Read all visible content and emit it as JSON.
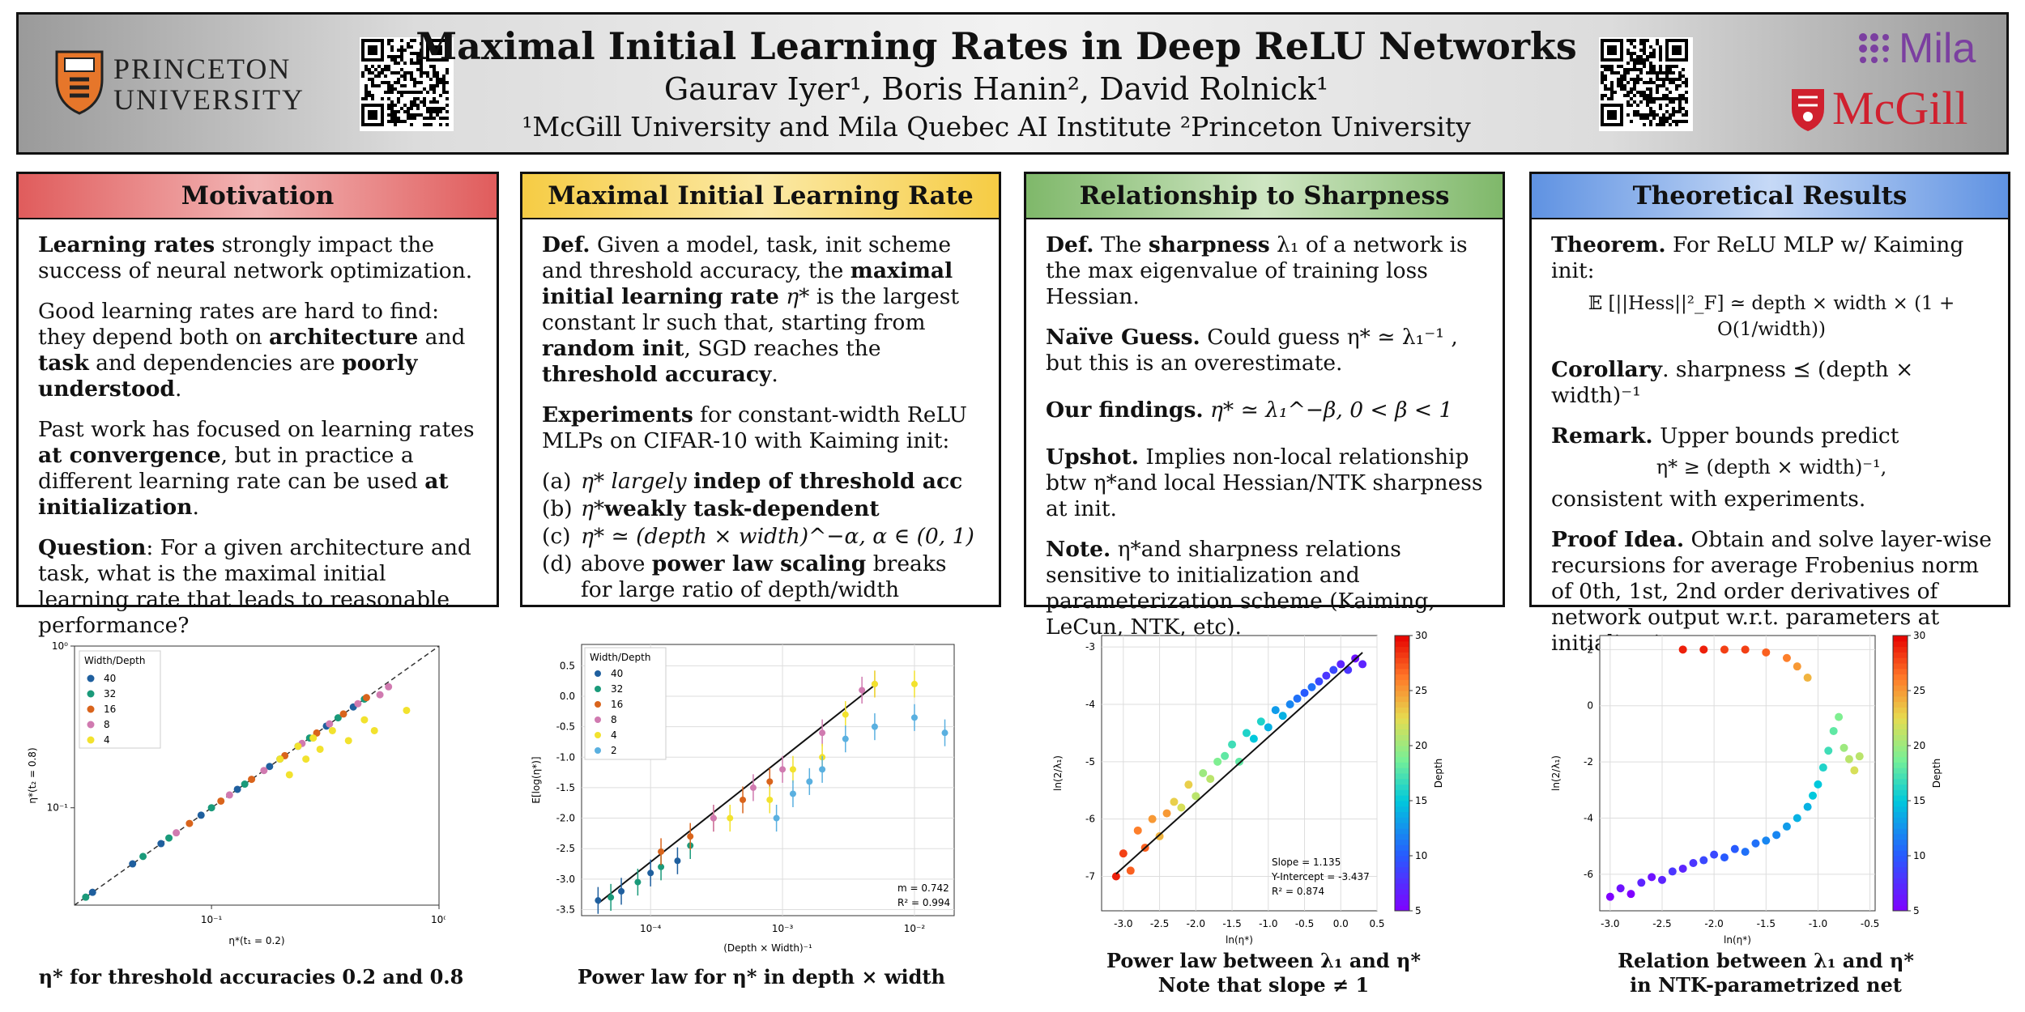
{
  "header": {
    "title": "Maximal Initial Learning Rates in Deep ReLU Networks",
    "authors": "Gaurav Iyer¹, Boris Hanin², David Rolnick¹",
    "affiliations": "¹McGill University and Mila Quebec AI Institute  ²Princeton University",
    "logo_left_line1": "PRINCETON",
    "logo_left_line2": "UNIVERSITY",
    "logo_right_top": "Mila",
    "logo_right_bottom": "McGill"
  },
  "panels": {
    "motivation": {
      "title": "Motivation",
      "p1_bold": "Learning rates",
      "p1_rest": " strongly impact the success of neural network optimization.",
      "p2_a": "Good learning rates are hard to find: they depend both on ",
      "p2_b": "architecture",
      "p2_c": " and ",
      "p2_d": "task",
      "p2_e": " and dependencies are ",
      "p2_f": "poorly understood",
      "p2_g": ".",
      "p3_a": "Past work has focused on learning rates ",
      "p3_b": "at convergence",
      "p3_c": ", but in practice a different learning rate can be used ",
      "p3_d": "at initialization",
      "p3_e": ".",
      "p4_a": "Question",
      "p4_b": ": For a given architecture and task, what is the maximal initial learning rate that leads to reasonable performance?"
    },
    "maxlr": {
      "title": "Maximal Initial Learning Rate",
      "d_a": "Def.",
      "d_b": " Given a model, task, init scheme and threshold accuracy, the ",
      "d_c": "maximal initial learning rate",
      "d_d": " η* ",
      "d_e": "is the largest constant lr such that, starting from ",
      "d_f": "random init",
      "d_g": ", SGD reaches the ",
      "d_h": "threshold accuracy",
      "d_i": ".",
      "e_a": "Experiments",
      "e_b": " for constant-width ReLU MLPs on CIFAR-10 with Kaiming init:",
      "items": [
        {
          "k": "(a)",
          "a": "η* largely ",
          "b": "indep of threshold acc"
        },
        {
          "k": "(b)",
          "a": "η*",
          "b": "weakly task-dependent"
        },
        {
          "k": "(c)",
          "a": "η* ≃ (depth × width)^−α,  α ∈ (0, 1)",
          "b": ""
        },
        {
          "k": "(d)",
          "a": "above ",
          "b": "power law scaling",
          "c": " breaks for large ratio of depth/width"
        }
      ]
    },
    "sharp": {
      "title": "Relationship to Sharpness",
      "d_a": "Def.",
      "d_b": " The ",
      "d_c": "sharpness",
      "d_d": " λ₁ of a network is the max eigenvalue of training loss Hessian.",
      "n_a": "Naïve Guess.",
      "n_b": " Could guess η* ≃ λ₁⁻¹ , but this is an overestimate.",
      "o_a": "Our findings.",
      "o_b": "  η* ≃ λ₁^−β,  0 < β < 1",
      "u_a": "Upshot.",
      "u_b": " Implies non-local relationship btw η*and local Hessian/NTK sharpness at init.",
      "t_a": "Note.",
      "t_b": " η*and sharpness relations sensitive to initialization and parameterization scheme (Kaiming, LeCun, NTK, etc)."
    },
    "theory": {
      "title": "Theoretical Results",
      "t_a": "Theorem.",
      "t_b": " For ReLU MLP w/ Kaiming init:",
      "eq1": "𝔼 [||Hess||²_F] ≃ depth × width × (1 + O(1/width))",
      "c_a": "Corollary",
      "c_b": ".  sharpness ⪯ (depth × width)⁻¹",
      "r_a": "Remark.",
      "r_b": " Upper bounds predict",
      "eq2": "η* ≥ (depth × width)⁻¹,",
      "r_c": "consistent with experiments.",
      "p_a": "Proof Idea.",
      "p_b": " Obtain and solve layer-wise recursions for average Frobenius norm of 0th, 1st, 2nd order derivatives of network output w.r.t. parameters at initialization."
    }
  },
  "captions": {
    "c1": "η* for threshold accuracies 0.2 and 0.8",
    "c2": "Power law for η* in depth × width",
    "c3a": "Power law between λ₁ and η*",
    "c3b": "Note that slope ≠ 1",
    "c4a": "Relation between λ₁ and η*",
    "c4b": "in NTK-parametrized net"
  },
  "colors": {
    "motivation_head": "#e46a6a",
    "maxlr_head": "#f7d35c",
    "sharp_head": "#8fc07a",
    "theory_head": "#6f9fe6",
    "mcgill_red": "#d0202e",
    "mila_purple": "#7b3fa0"
  },
  "chart_data": [
    {
      "type": "scatter",
      "title": "",
      "xlabel": "η*(t₁ = 0.2)",
      "ylabel": "η*(t₂ = 0.8)",
      "xscale": "log",
      "yscale": "log",
      "xlim": [
        0.025,
        1.0
      ],
      "ylim": [
        0.025,
        1.0
      ],
      "xticks": [
        "10⁻¹",
        "10⁰"
      ],
      "yticks": [
        "10⁻¹",
        "10⁰"
      ],
      "legend_title": "Width/Depth",
      "legend_position": "top-left",
      "reference_line": "y = x (dashed)",
      "series": [
        {
          "name": "40",
          "color": "#1f5f9e",
          "x": [
            0.03,
            0.045,
            0.06,
            0.09,
            0.13,
            0.18,
            0.24,
            0.32,
            0.42
          ],
          "y": [
            0.03,
            0.045,
            0.06,
            0.09,
            0.13,
            0.18,
            0.24,
            0.32,
            0.42
          ]
        },
        {
          "name": "32",
          "color": "#1a9a7a",
          "x": [
            0.028,
            0.05,
            0.065,
            0.1,
            0.14,
            0.2,
            0.27,
            0.36,
            0.47
          ],
          "y": [
            0.028,
            0.05,
            0.065,
            0.1,
            0.14,
            0.2,
            0.27,
            0.36,
            0.47
          ]
        },
        {
          "name": "16",
          "color": "#d9641c",
          "x": [
            0.08,
            0.11,
            0.15,
            0.21,
            0.29,
            0.38,
            0.48
          ],
          "y": [
            0.08,
            0.11,
            0.15,
            0.21,
            0.29,
            0.38,
            0.48
          ]
        },
        {
          "name": "8",
          "color": "#d07ab0",
          "x": [
            0.07,
            0.12,
            0.17,
            0.25,
            0.33,
            0.44,
            0.55,
            0.6
          ],
          "y": [
            0.07,
            0.12,
            0.17,
            0.25,
            0.33,
            0.44,
            0.5,
            0.56
          ]
        },
        {
          "name": "4",
          "color": "#f2e22e",
          "x": [
            0.2,
            0.22,
            0.24,
            0.26,
            0.28,
            0.3,
            0.34,
            0.4,
            0.47,
            0.52,
            0.72
          ],
          "y": [
            0.2,
            0.16,
            0.24,
            0.2,
            0.27,
            0.23,
            0.3,
            0.26,
            0.35,
            0.3,
            0.4
          ]
        }
      ]
    },
    {
      "type": "scatter",
      "title": "",
      "xlabel": "(Depth × Width)⁻¹",
      "ylabel": "E[log(η*)]",
      "xscale": "log",
      "xlim": [
        3e-05,
        0.02
      ],
      "ylim": [
        -3.6,
        0.85
      ],
      "xticks": [
        "10⁻⁴",
        "10⁻³",
        "10⁻²"
      ],
      "yticks": [
        -3.5,
        -3.0,
        -2.5,
        -2.0,
        -1.5,
        -1.0,
        -0.5,
        0.0,
        0.5
      ],
      "legend_title": "Width/Depth",
      "legend_position": "top-left",
      "error_bars": true,
      "fit": {
        "m": 0.742,
        "R2": 0.994,
        "label_m": "m = 0.742",
        "label_r2": "R² = 0.994"
      },
      "series": [
        {
          "name": "40",
          "color": "#1f5f9e",
          "x": [
            4e-05,
            6e-05,
            0.0001,
            0.00016
          ],
          "y": [
            -3.35,
            -3.2,
            -2.9,
            -2.7
          ]
        },
        {
          "name": "32",
          "color": "#1a9a7a",
          "x": [
            5e-05,
            8e-05,
            0.00012,
            0.0002
          ],
          "y": [
            -3.3,
            -3.05,
            -2.8,
            -2.45
          ]
        },
        {
          "name": "16",
          "color": "#d9641c",
          "x": [
            0.00012,
            0.0002,
            0.0003,
            0.0005,
            0.0008
          ],
          "y": [
            -2.55,
            -2.3,
            -2.0,
            -1.7,
            -1.4
          ]
        },
        {
          "name": "8",
          "color": "#d07ab0",
          "x": [
            0.0003,
            0.0006,
            0.001,
            0.002,
            0.004,
            0.005
          ],
          "y": [
            -2.0,
            -1.5,
            -1.2,
            -0.6,
            0.1,
            0.2
          ]
        },
        {
          "name": "4",
          "color": "#f2e22e",
          "x": [
            0.0004,
            0.0008,
            0.0012,
            0.002,
            0.003,
            0.005,
            0.01
          ],
          "y": [
            -2.0,
            -1.7,
            -1.2,
            -1.0,
            -0.3,
            0.2,
            0.2
          ]
        },
        {
          "name": "2",
          "color": "#5ab0e0",
          "x": [
            0.0009,
            0.0012,
            0.0016,
            0.002,
            0.003,
            0.005,
            0.01,
            0.017
          ],
          "y": [
            -2.0,
            -1.6,
            -1.4,
            -1.2,
            -0.7,
            -0.5,
            -0.35,
            -0.6
          ]
        }
      ]
    },
    {
      "type": "scatter",
      "title": "",
      "xlabel": "ln(η*)",
      "ylabel": "ln(2/λ₁)",
      "xlim": [
        -3.3,
        0.5
      ],
      "ylim": [
        -7.6,
        -2.8
      ],
      "xticks": [
        -3.0,
        -2.5,
        -2.0,
        -1.5,
        -1.0,
        -0.5,
        0.0,
        0.5
      ],
      "yticks": [
        -7,
        -6,
        -5,
        -4,
        -3
      ],
      "colorbar": {
        "label": "Depth",
        "min": 5,
        "max": 30,
        "ticks": [
          5,
          10,
          15,
          20,
          25,
          30
        ]
      },
      "fit": {
        "slope": 1.135,
        "intercept": -3.437,
        "R2": 0.874,
        "label_slope": "Slope = 1.135",
        "label_intercept": "Y-Intercept = -3.437",
        "label_r2": "R² = 0.874"
      },
      "series": [
        {
          "name": "",
          "x": [
            -3.1,
            -3.0,
            -2.9,
            -2.8,
            -2.7,
            -2.6,
            -2.5,
            -2.4,
            -2.3,
            -2.2,
            -2.1,
            -2.0,
            -1.9,
            -1.8,
            -1.7,
            -1.6,
            -1.5,
            -1.4,
            -1.3,
            -1.2,
            -1.1,
            -1.0,
            -0.9,
            -0.8,
            -0.7,
            -0.6,
            -0.5,
            -0.4,
            -0.3,
            -0.2,
            -0.1,
            0.0,
            0.1,
            0.2,
            0.3
          ],
          "y": [
            -7.0,
            -6.6,
            -6.9,
            -6.2,
            -6.5,
            -6.0,
            -6.3,
            -5.9,
            -5.7,
            -5.8,
            -5.4,
            -5.6,
            -5.2,
            -5.3,
            -5.0,
            -4.9,
            -4.7,
            -5.0,
            -4.5,
            -4.6,
            -4.3,
            -4.4,
            -4.1,
            -4.2,
            -4.0,
            -3.9,
            -3.8,
            -3.7,
            -3.6,
            -3.5,
            -3.4,
            -3.3,
            -3.4,
            -3.2,
            -3.3
          ],
          "depth": [
            29,
            28,
            27,
            26,
            27,
            25,
            24,
            25,
            23,
            22,
            23,
            21,
            20,
            21,
            19,
            18,
            17,
            18,
            16,
            15,
            16,
            14,
            13,
            14,
            12,
            11,
            10,
            11,
            9,
            8,
            9,
            7,
            8,
            6,
            7
          ]
        }
      ]
    },
    {
      "type": "scatter",
      "title": "",
      "xlabel": "ln(η*)",
      "ylabel": "ln(2/λ₁)",
      "xlim": [
        -3.1,
        -0.45
      ],
      "ylim": [
        -7.3,
        2.5
      ],
      "xticks": [
        -3.0,
        -2.5,
        -2.0,
        -1.5,
        -1.0,
        -0.5
      ],
      "yticks": [
        -6,
        -4,
        -2,
        0,
        2
      ],
      "colorbar": {
        "label": "Depth",
        "min": 5,
        "max": 30,
        "ticks": [
          5,
          10,
          15,
          20,
          25,
          30
        ]
      },
      "series": [
        {
          "name": "",
          "x": [
            -3.0,
            -2.9,
            -2.8,
            -2.7,
            -2.6,
            -2.5,
            -2.4,
            -2.3,
            -2.2,
            -2.1,
            -2.0,
            -1.9,
            -1.8,
            -1.7,
            -1.6,
            -1.5,
            -1.4,
            -1.3,
            -1.2,
            -1.1,
            -1.05,
            -1.0,
            -0.95,
            -0.9,
            -0.85,
            -0.8,
            -0.75,
            -0.7,
            -0.65,
            -0.6,
            -2.3,
            -2.1,
            -1.9,
            -1.7,
            -1.5,
            -1.3,
            -1.2,
            -1.1
          ],
          "y": [
            -6.8,
            -6.5,
            -6.7,
            -6.3,
            -6.1,
            -6.2,
            -5.9,
            -5.8,
            -5.6,
            -5.5,
            -5.3,
            -5.4,
            -5.1,
            -5.2,
            -4.9,
            -4.8,
            -4.6,
            -4.3,
            -4.0,
            -3.6,
            -3.2,
            -2.8,
            -2.2,
            -1.6,
            -0.9,
            -0.4,
            -1.5,
            -1.9,
            -2.3,
            -1.8,
            2.0,
            2.0,
            2.0,
            2.0,
            1.9,
            1.7,
            1.4,
            1.0
          ],
          "depth": [
            5,
            6,
            5,
            7,
            6,
            7,
            8,
            7,
            8,
            9,
            9,
            10,
            10,
            11,
            11,
            12,
            12,
            13,
            14,
            14,
            15,
            15,
            16,
            17,
            18,
            19,
            20,
            21,
            22,
            21,
            29,
            29,
            28,
            28,
            27,
            26,
            25,
            24
          ]
        }
      ]
    }
  ]
}
